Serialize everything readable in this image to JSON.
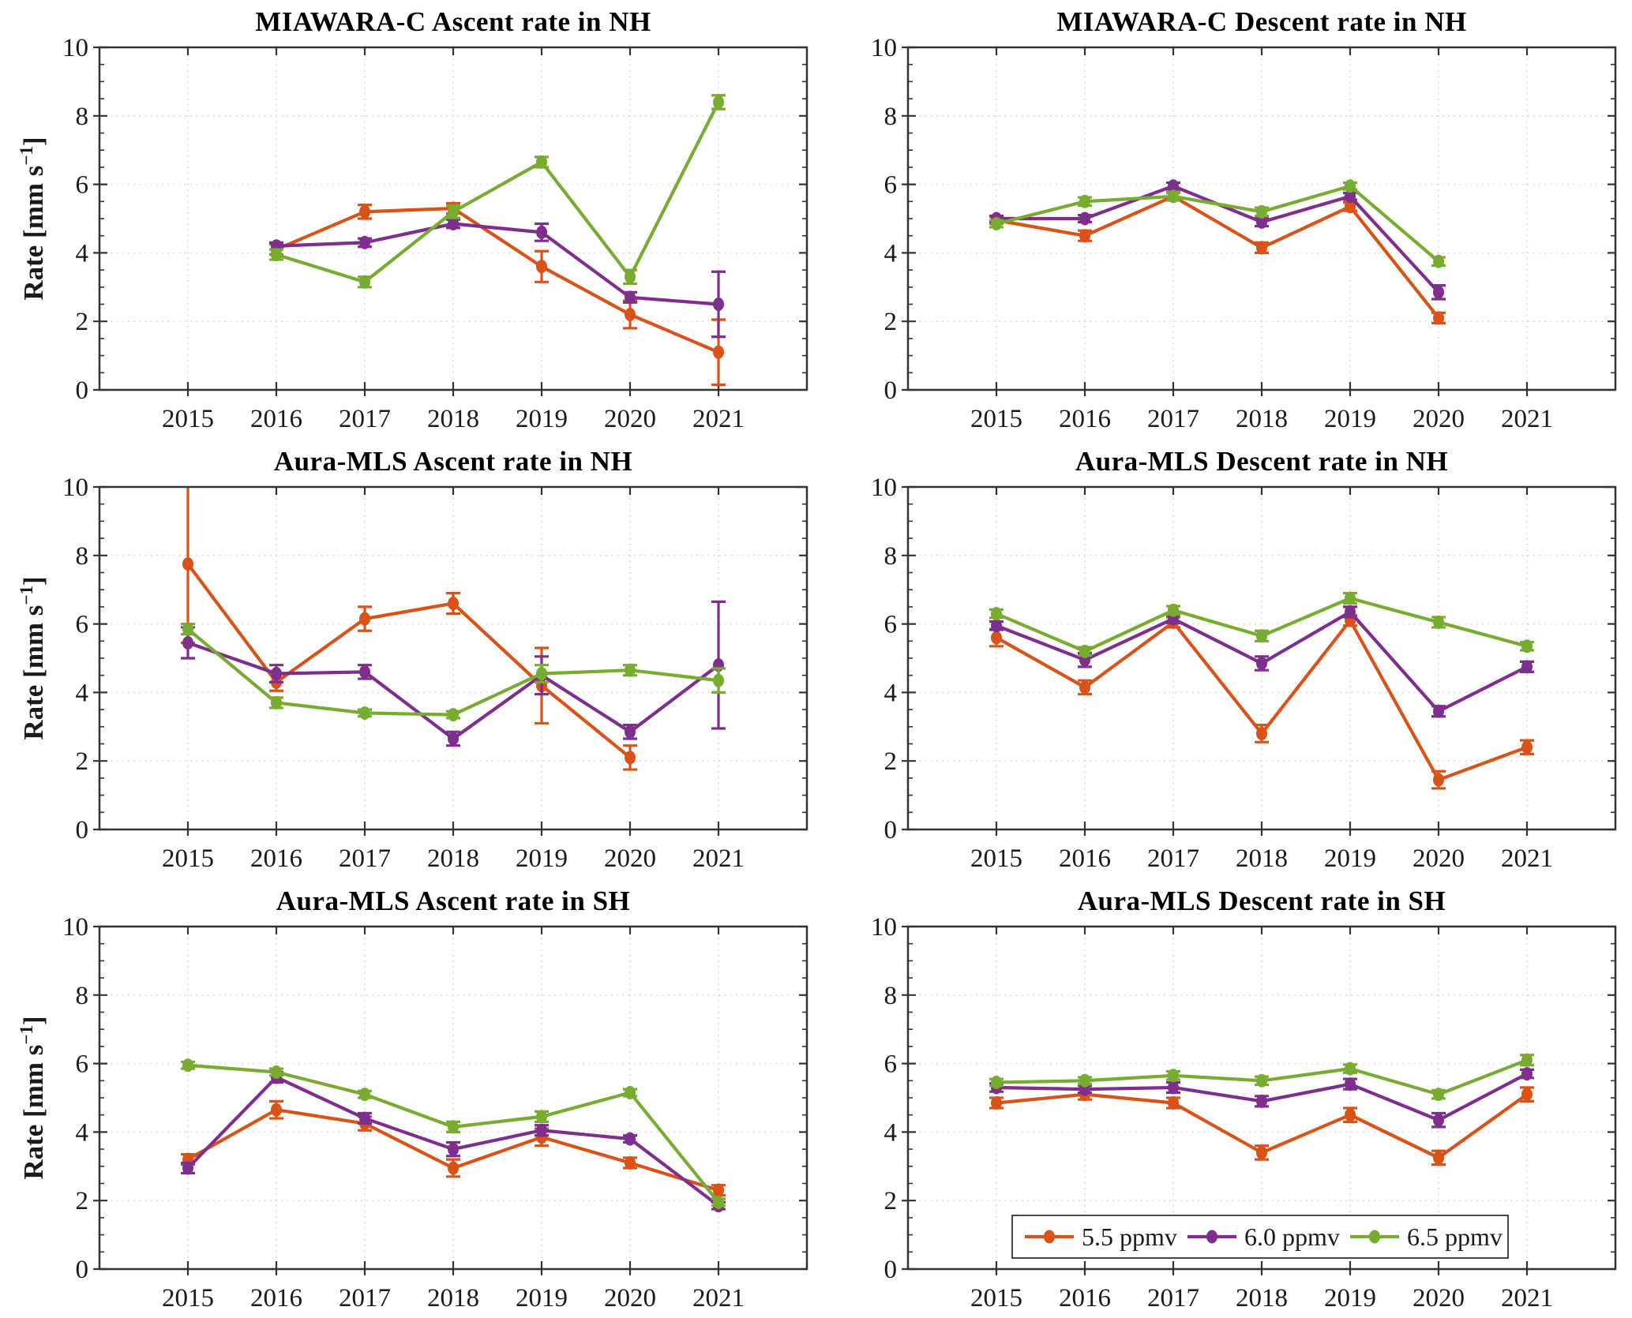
{
  "figure": {
    "ylabel_pre": "Rate [mm s",
    "ylabel_sup": "−1",
    "ylabel_post": "]"
  },
  "series_colors": {
    "5.5 ppmv": "#D95319",
    "6.0 ppmv": "#7E2F8E",
    "6.5 ppmv": "#77AC30"
  },
  "axis_style": {
    "axis_color": "#333333",
    "grid_color": "#d9d9d9",
    "tick_label_color": "#1a1a1a"
  },
  "legend": {
    "position": "south-inside-last-panel",
    "items": [
      {
        "label": "5.5 ppmv",
        "color": "#D95319"
      },
      {
        "label": "6.0 ppmv",
        "color": "#7E2F8E"
      },
      {
        "label": "6.5 ppmv",
        "color": "#77AC30"
      }
    ]
  },
  "chart_data": [
    {
      "type": "line",
      "title": "MIAWARA-C Ascent rate in NH",
      "xlim": [
        2014,
        2022
      ],
      "ylim": [
        0,
        10
      ],
      "xticks": [
        2015,
        2016,
        2017,
        2018,
        2019,
        2020,
        2021
      ],
      "yticks": [
        0,
        2,
        4,
        6,
        8,
        10
      ],
      "y_minor_step": 0.5,
      "grid": true,
      "show_ylabel": true,
      "legend": false,
      "series": [
        {
          "name": "5.5 ppmv",
          "color": "#D95319",
          "x": [
            2016,
            2017,
            2018,
            2019,
            2020,
            2021
          ],
          "y": [
            4.1,
            5.2,
            5.3,
            3.6,
            2.2,
            1.1
          ],
          "yerr": [
            0.15,
            0.2,
            0.15,
            0.45,
            0.4,
            0.95
          ]
        },
        {
          "name": "6.0 ppmv",
          "color": "#7E2F8E",
          "x": [
            2016,
            2017,
            2018,
            2019,
            2020,
            2021
          ],
          "y": [
            4.2,
            4.3,
            4.85,
            4.6,
            2.7,
            2.5
          ],
          "yerr": [
            0.1,
            0.12,
            0.12,
            0.25,
            0.15,
            0.95
          ]
        },
        {
          "name": "6.5 ppmv",
          "color": "#77AC30",
          "x": [
            2016,
            2017,
            2018,
            2019,
            2020,
            2021
          ],
          "y": [
            3.95,
            3.15,
            5.2,
            6.65,
            3.3,
            8.4
          ],
          "yerr": [
            0.15,
            0.15,
            0.18,
            0.15,
            0.2,
            0.2
          ]
        }
      ]
    },
    {
      "type": "line",
      "title": "MIAWARA-C Descent rate in NH",
      "xlim": [
        2014,
        2022
      ],
      "ylim": [
        0,
        10
      ],
      "xticks": [
        2015,
        2016,
        2017,
        2018,
        2019,
        2020,
        2021
      ],
      "yticks": [
        0,
        2,
        4,
        6,
        8,
        10
      ],
      "y_minor_step": 0.5,
      "grid": true,
      "show_ylabel": false,
      "legend": false,
      "series": [
        {
          "name": "5.5 ppmv",
          "color": "#D95319",
          "x": [
            2015,
            2016,
            2017,
            2018,
            2019,
            2020
          ],
          "y": [
            4.95,
            4.5,
            5.65,
            4.15,
            5.35,
            2.1
          ],
          "yerr": [
            0.1,
            0.15,
            0.1,
            0.15,
            0.12,
            0.15
          ]
        },
        {
          "name": "6.0 ppmv",
          "color": "#7E2F8E",
          "x": [
            2015,
            2016,
            2017,
            2018,
            2019,
            2020
          ],
          "y": [
            5.0,
            5.0,
            5.95,
            4.9,
            5.65,
            2.85
          ],
          "yerr": [
            0.08,
            0.1,
            0.1,
            0.12,
            0.1,
            0.2
          ]
        },
        {
          "name": "6.5 ppmv",
          "color": "#77AC30",
          "x": [
            2015,
            2016,
            2017,
            2018,
            2019,
            2020
          ],
          "y": [
            4.85,
            5.5,
            5.65,
            5.2,
            5.95,
            3.75
          ],
          "yerr": [
            0.1,
            0.12,
            0.12,
            0.12,
            0.1,
            0.12
          ]
        }
      ]
    },
    {
      "type": "line",
      "title": "Aura-MLS Ascent rate in NH",
      "xlim": [
        2014,
        2022
      ],
      "ylim": [
        0,
        10
      ],
      "xticks": [
        2015,
        2016,
        2017,
        2018,
        2019,
        2020,
        2021
      ],
      "yticks": [
        0,
        2,
        4,
        6,
        8,
        10
      ],
      "y_minor_step": 0.5,
      "grid": true,
      "show_ylabel": true,
      "legend": false,
      "series": [
        {
          "name": "5.5 ppmv",
          "color": "#D95319",
          "x": [
            2015,
            2016,
            2017,
            2018,
            2019,
            2020
          ],
          "y": [
            7.75,
            4.3,
            6.15,
            6.6,
            4.2,
            2.1
          ],
          "yerr": [
            2.3,
            0.25,
            0.35,
            0.3,
            1.1,
            0.35
          ]
        },
        {
          "name": "6.0 ppmv",
          "color": "#7E2F8E",
          "x": [
            2015,
            2016,
            2017,
            2018,
            2019,
            2020,
            2021
          ],
          "y": [
            5.45,
            4.55,
            4.6,
            2.65,
            4.5,
            2.85,
            4.8
          ],
          "yerr": [
            0.45,
            0.25,
            0.2,
            0.2,
            0.55,
            0.2,
            1.85
          ]
        },
        {
          "name": "6.5 ppmv",
          "color": "#77AC30",
          "x": [
            2015,
            2016,
            2017,
            2018,
            2019,
            2020,
            2021
          ],
          "y": [
            5.85,
            3.7,
            3.4,
            3.35,
            4.55,
            4.65,
            4.35
          ],
          "yerr": [
            0.15,
            0.15,
            0.1,
            0.1,
            0.25,
            0.15,
            0.35
          ]
        }
      ]
    },
    {
      "type": "line",
      "title": "Aura-MLS Descent rate in NH",
      "xlim": [
        2014,
        2022
      ],
      "ylim": [
        0,
        10
      ],
      "xticks": [
        2015,
        2016,
        2017,
        2018,
        2019,
        2020,
        2021
      ],
      "yticks": [
        0,
        2,
        4,
        6,
        8,
        10
      ],
      "y_minor_step": 0.5,
      "grid": true,
      "show_ylabel": false,
      "legend": false,
      "series": [
        {
          "name": "5.5 ppmv",
          "color": "#D95319",
          "x": [
            2015,
            2016,
            2017,
            2018,
            2019,
            2020,
            2021
          ],
          "y": [
            5.6,
            4.15,
            6.05,
            2.8,
            6.1,
            1.45,
            2.4
          ],
          "yerr": [
            0.25,
            0.2,
            0.15,
            0.25,
            0.15,
            0.25,
            0.2
          ]
        },
        {
          "name": "6.0 ppmv",
          "color": "#7E2F8E",
          "x": [
            2015,
            2016,
            2017,
            2018,
            2019,
            2020,
            2021
          ],
          "y": [
            5.95,
            4.95,
            6.15,
            4.85,
            6.35,
            3.45,
            4.75
          ],
          "yerr": [
            0.12,
            0.2,
            0.12,
            0.2,
            0.15,
            0.15,
            0.15
          ]
        },
        {
          "name": "6.5 ppmv",
          "color": "#77AC30",
          "x": [
            2015,
            2016,
            2017,
            2018,
            2019,
            2020,
            2021
          ],
          "y": [
            6.3,
            5.2,
            6.4,
            5.65,
            6.75,
            6.05,
            5.35
          ],
          "yerr": [
            0.12,
            0.12,
            0.12,
            0.15,
            0.15,
            0.15,
            0.12
          ]
        }
      ]
    },
    {
      "type": "line",
      "title": "Aura-MLS Ascent rate in SH",
      "xlim": [
        2014,
        2022
      ],
      "ylim": [
        0,
        10
      ],
      "xticks": [
        2015,
        2016,
        2017,
        2018,
        2019,
        2020,
        2021
      ],
      "yticks": [
        0,
        2,
        4,
        6,
        8,
        10
      ],
      "y_minor_step": 0.5,
      "grid": true,
      "show_ylabel": true,
      "legend": false,
      "series": [
        {
          "name": "5.5 ppmv",
          "color": "#D95319",
          "x": [
            2015,
            2016,
            2017,
            2018,
            2019,
            2020,
            2021
          ],
          "y": [
            3.2,
            4.65,
            4.25,
            2.95,
            3.85,
            3.1,
            2.3
          ],
          "yerr": [
            0.15,
            0.25,
            0.2,
            0.25,
            0.25,
            0.15,
            0.15
          ]
        },
        {
          "name": "6.0 ppmv",
          "color": "#7E2F8E",
          "x": [
            2015,
            2016,
            2017,
            2018,
            2019,
            2020,
            2021
          ],
          "y": [
            2.95,
            5.6,
            4.4,
            3.5,
            4.05,
            3.8,
            1.85
          ],
          "yerr": [
            0.15,
            0.15,
            0.15,
            0.2,
            0.15,
            0.1,
            0.1
          ]
        },
        {
          "name": "6.5 ppmv",
          "color": "#77AC30",
          "x": [
            2015,
            2016,
            2017,
            2018,
            2019,
            2020,
            2021
          ],
          "y": [
            5.95,
            5.75,
            5.1,
            4.15,
            4.45,
            5.15,
            1.95
          ],
          "yerr": [
            0.1,
            0.1,
            0.1,
            0.15,
            0.15,
            0.1,
            0.1
          ]
        }
      ]
    },
    {
      "type": "line",
      "title": "Aura-MLS Descent rate in SH",
      "xlim": [
        2014,
        2022
      ],
      "ylim": [
        0,
        10
      ],
      "xticks": [
        2015,
        2016,
        2017,
        2018,
        2019,
        2020,
        2021
      ],
      "yticks": [
        0,
        2,
        4,
        6,
        8,
        10
      ],
      "y_minor_step": 0.5,
      "grid": true,
      "show_ylabel": false,
      "legend": true,
      "series": [
        {
          "name": "5.5 ppmv",
          "color": "#D95319",
          "x": [
            2015,
            2016,
            2017,
            2018,
            2019,
            2020,
            2021
          ],
          "y": [
            4.85,
            5.1,
            4.85,
            3.4,
            4.5,
            3.25,
            5.1
          ],
          "yerr": [
            0.15,
            0.15,
            0.15,
            0.2,
            0.2,
            0.2,
            0.2
          ]
        },
        {
          "name": "6.0 ppmv",
          "color": "#7E2F8E",
          "x": [
            2015,
            2016,
            2017,
            2018,
            2019,
            2020,
            2021
          ],
          "y": [
            5.3,
            5.25,
            5.3,
            4.9,
            5.4,
            4.35,
            5.7
          ],
          "yerr": [
            0.12,
            0.1,
            0.15,
            0.15,
            0.15,
            0.2,
            0.12
          ]
        },
        {
          "name": "6.5 ppmv",
          "color": "#77AC30",
          "x": [
            2015,
            2016,
            2017,
            2018,
            2019,
            2020,
            2021
          ],
          "y": [
            5.45,
            5.5,
            5.65,
            5.5,
            5.85,
            5.1,
            6.1
          ],
          "yerr": [
            0.1,
            0.1,
            0.12,
            0.12,
            0.12,
            0.12,
            0.15
          ]
        }
      ]
    }
  ]
}
